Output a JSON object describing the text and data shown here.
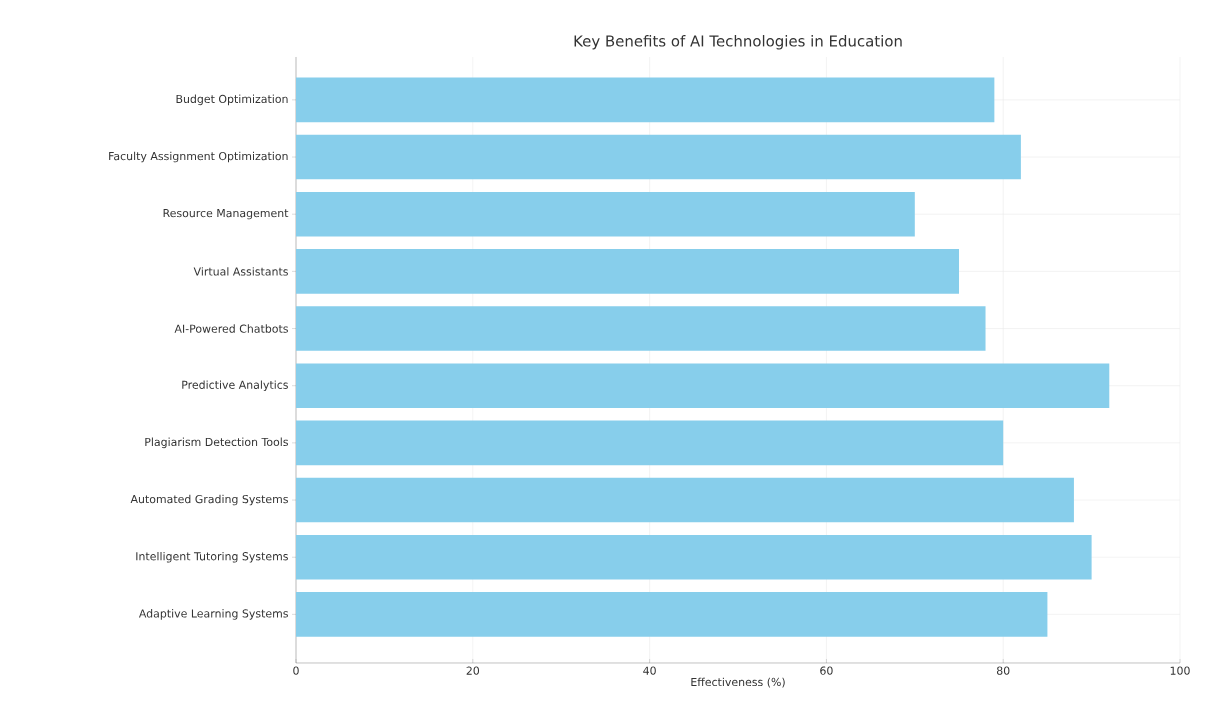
{
  "chart_data": {
    "type": "bar",
    "orientation": "horizontal",
    "title": "Key Benefits of AI Technologies in Education",
    "xlabel": "Effectiveness (%)",
    "categories": [
      "Budget Optimization",
      "Faculty Assignment Optimization",
      "Resource Management",
      "Virtual Assistants",
      "AI-Powered Chatbots",
      "Predictive Analytics",
      "Plagiarism Detection Tools",
      "Automated Grading Systems",
      "Intelligent Tutoring Systems",
      "Adaptive Learning Systems"
    ],
    "values": [
      79,
      82,
      70,
      75,
      78,
      92,
      80,
      88,
      90,
      85
    ],
    "color": "#87ceeb",
    "xlim": [
      0,
      100
    ],
    "xticks": [
      0,
      20,
      40,
      60,
      80,
      100
    ],
    "grid": true
  }
}
